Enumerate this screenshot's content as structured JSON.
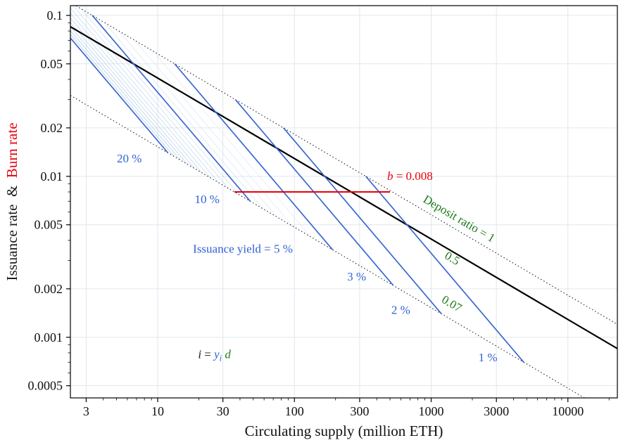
{
  "figure": {
    "xlabel": "Circulating supply (million ETH)",
    "ylabel_parts": [
      {
        "text": "Issuance rate",
        "color": "black"
      },
      {
        "text": " & ",
        "color": "black"
      },
      {
        "text": "Burn rate",
        "color": "red"
      }
    ]
  },
  "colors": {
    "blue": "#3061d5",
    "green": "#1a7a1a",
    "red": "#e8000d",
    "black": "#1a1a1a",
    "line_blue": "#3a67d2",
    "line_fan": "#aecbe8",
    "line_black": "#000000",
    "dotted": "#222222",
    "grid": "#e0e7ed",
    "frame": "#000000"
  },
  "chart_data": {
    "type": "line",
    "x_scale": "log",
    "y_scale": "log",
    "x_domain": [
      2.3,
      23000
    ],
    "y_domain": [
      0.00042,
      0.115
    ],
    "x_ticks": [
      3,
      10,
      30,
      100,
      300,
      1000,
      3000,
      10000
    ],
    "x_tick_labels": [
      "3",
      "10",
      "30",
      "100",
      "300",
      "1000",
      "3000",
      "10000"
    ],
    "y_ticks": [
      0.1,
      0.05,
      0.02,
      0.01,
      0.005,
      0.002,
      0.001,
      0.0005
    ],
    "y_tick_labels": [
      "0.1",
      "0.05",
      "0.02",
      "0.01",
      "0.005",
      "0.002",
      "0.001",
      "0.0005"
    ],
    "grid": true,
    "model": {
      "C": 0.1824,
      "deposit_lines": [
        {
          "d": 1,
          "style": "dotted"
        },
        {
          "d": 0.5,
          "style": "solid"
        },
        {
          "d": 0.07,
          "style": "dotted"
        }
      ],
      "yield_lines_main": [
        0.2,
        0.1,
        0.05,
        0.03,
        0.02,
        0.01
      ],
      "yield_lines_fan": [
        0.06,
        0.07,
        0.08,
        0.09,
        0.11,
        0.12,
        0.13,
        0.14,
        0.15,
        0.16,
        0.17,
        0.18,
        0.19
      ],
      "yield_d_range": [
        0.07,
        1
      ],
      "burn_line": {
        "b": 0.008,
        "s_start": 36.4,
        "s_end": 500
      }
    },
    "annotations": [
      {
        "id": "yield-20",
        "text": "20 %",
        "x": 6.2,
        "y": 0.0122,
        "color": "blue",
        "size": 17
      },
      {
        "id": "yield-10",
        "text": "10 %",
        "x": 23,
        "y": 0.0068,
        "color": "blue",
        "size": 17
      },
      {
        "id": "yield-5",
        "text": "Issuance yield = 5 %",
        "x": 42,
        "y": 0.00335,
        "color": "blue",
        "size": 17
      },
      {
        "id": "yield-3",
        "text": "3 %",
        "x": 285,
        "y": 0.00225,
        "color": "blue",
        "size": 17
      },
      {
        "id": "yield-2",
        "text": "2 %",
        "x": 600,
        "y": 0.0014,
        "color": "blue",
        "size": 17
      },
      {
        "id": "yield-1",
        "text": "1 %",
        "x": 2600,
        "y": 0.00071,
        "color": "blue",
        "size": 17
      },
      {
        "id": "deposit-ratio-1",
        "text": "Deposit ratio = 1",
        "x": 1550,
        "y": 0.0052,
        "color": "green",
        "size": 17,
        "rotate": true
      },
      {
        "id": "deposit-ratio-0p5",
        "text": "0.5",
        "x": 1380,
        "y": 0.00295,
        "color": "green",
        "size": 17,
        "rotate": true
      },
      {
        "id": "deposit-ratio-0p07",
        "text": "0.07",
        "x": 1370,
        "y": 0.00154,
        "color": "green",
        "size": 17,
        "rotate": true
      },
      {
        "id": "burn-label",
        "x": 700,
        "y": 0.0095,
        "size": 17,
        "parts": [
          {
            "t": "b",
            "color": "red",
            "italic": true
          },
          {
            "t": " = 0.008",
            "color": "red",
            "italic": false
          }
        ]
      },
      {
        "id": "formula",
        "x": 26,
        "y": 0.00074,
        "size": 17,
        "parts": [
          {
            "t": "i",
            "color": "black",
            "italic": true
          },
          {
            "t": " = ",
            "color": "black",
            "italic": false
          },
          {
            "t": "y",
            "color": "blue",
            "italic": true
          },
          {
            "t": "i",
            "color": "blue",
            "italic": true,
            "sub": true
          },
          {
            "t": " d",
            "color": "green",
            "italic": true
          }
        ]
      }
    ]
  }
}
